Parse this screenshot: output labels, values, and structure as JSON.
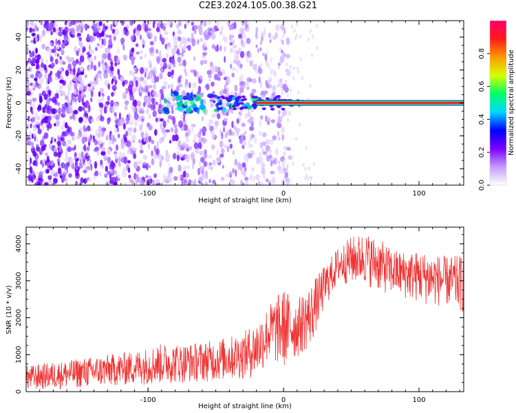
{
  "title": "C2E3.2024.105.00.38.G21",
  "chart_data": [
    {
      "type": "heatmap",
      "title": "",
      "xlabel": "Height of straight line (km)",
      "ylabel": "Frequency (Hz)",
      "xlim": [
        -190,
        133
      ],
      "ylim": [
        -50,
        50
      ],
      "xticks": [
        -100,
        0,
        100
      ],
      "yticks": [
        -40,
        -20,
        0,
        20,
        40
      ],
      "colorbar": {
        "label": "Normalized spectral amplitude",
        "range": [
          0.0,
          1.0
        ],
        "ticks": [
          "0.0",
          "0.2",
          "0.4",
          "0.6",
          "0.8"
        ],
        "colors": [
          "#ffffff",
          "#c39bff",
          "#7a00ff",
          "#0000ff",
          "#00d8ff",
          "#00ff66",
          "#d8ff00",
          "#ff9900",
          "#ff1a1a",
          "#ff0066"
        ]
      },
      "features": {
        "noise_band_x": [
          -190,
          -20
        ],
        "signal_line_start_x": -20,
        "signal_line_freq": 0,
        "signal_line_amplitude": 0.95
      }
    },
    {
      "type": "line",
      "title": "",
      "xlabel": "Height of straight line (km)",
      "ylabel": "SNR (10 * v/v)",
      "xlim": [
        -190,
        133
      ],
      "ylim": [
        0,
        4450
      ],
      "xticks": [
        -100,
        0,
        100
      ],
      "yticks": [
        0,
        1000,
        2000,
        3000,
        4000
      ],
      "color": "#ee3333",
      "series": [
        {
          "x": [
            -190,
            -170,
            -150,
            -130,
            -110,
            -90,
            -70,
            -50,
            -30,
            -20,
            -10,
            0,
            10,
            20,
            30,
            40,
            50,
            60,
            70,
            80,
            90,
            100,
            110,
            120,
            133
          ],
          "low": [
            20,
            60,
            90,
            130,
            170,
            200,
            240,
            280,
            330,
            380,
            800,
            600,
            900,
            1200,
            2200,
            2900,
            2900,
            2900,
            2700,
            2600,
            2500,
            2400,
            2300,
            2300,
            2100
          ],
          "high": [
            700,
            800,
            900,
            1000,
            1100,
            1300,
            1300,
            1400,
            1600,
            1900,
            2400,
            2800,
            2500,
            2900,
            3400,
            3900,
            4200,
            4300,
            4150,
            3850,
            3800,
            3800,
            3750,
            3650,
            3700
          ]
        }
      ]
    }
  ]
}
